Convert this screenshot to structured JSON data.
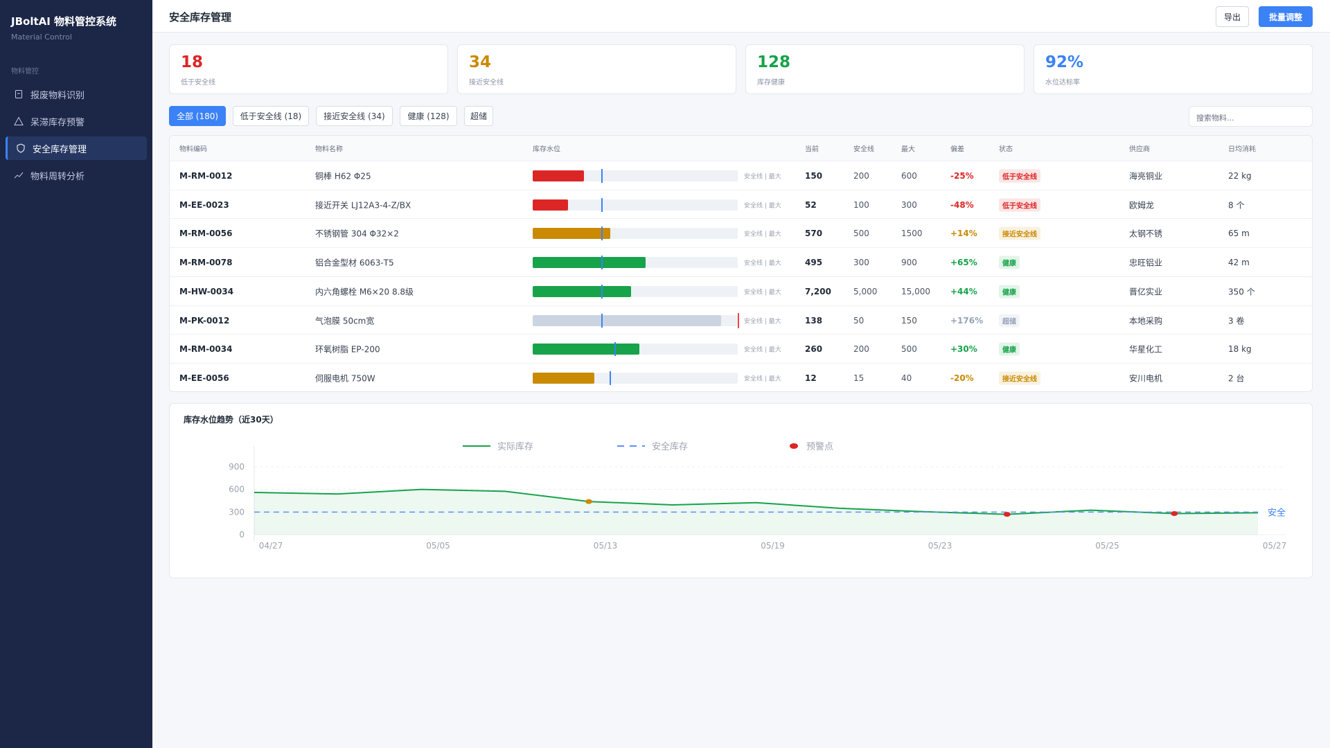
{
  "sidebar": {
    "title": "JBoltAI 物料管控系统",
    "subtitle": "Material Control",
    "section": "物料管控",
    "menu": [
      "报废物料识别",
      "呆滞库存预警",
      "安全库存管理",
      "物料周转分析"
    ]
  },
  "header": {
    "title": "安全库存管理",
    "buttons": [
      "导出",
      "批量调整"
    ]
  },
  "stats": [
    {
      "value": 18,
      "label": "低于安全线",
      "color": "#dc2626"
    },
    {
      "value": 34,
      "label": "接近安全线",
      "color": "#ca8a04"
    },
    {
      "value": 128,
      "label": "库存健康",
      "color": "#16a34a"
    },
    {
      "value": "92%",
      "label": "水位达标率",
      "color": "#3b82f6"
    }
  ],
  "filters": [
    "全部 (180)",
    "低于安全线 (18)",
    "接近安全线 (34)",
    "健康 (128)",
    "超储"
  ],
  "search_placeholder": "搜索物料...",
  "table": {
    "columns": [
      "物料编码",
      "物料名称",
      "库存水位",
      "当前",
      "安全线",
      "最大",
      "偏差",
      "状态",
      "供应商",
      "日均消耗"
    ],
    "level_legend": "安全线 | 最大",
    "rows": [
      {
        "code": "M-RM-0012",
        "name": "铜棒 H62 Φ25",
        "current": 150,
        "safety": 200,
        "max": 600,
        "deviation": "-25%",
        "status": "低于安全线",
        "color": "#dc2626",
        "supplier": "海亮铜业",
        "daily": "22 kg"
      },
      {
        "code": "M-EE-0023",
        "name": "接近开关 LJ12A3-4-Z/BX",
        "current": 52,
        "safety": 100,
        "max": 300,
        "deviation": "-48%",
        "status": "低于安全线",
        "color": "#dc2626",
        "supplier": "欧姆龙",
        "daily": "8 个"
      },
      {
        "code": "M-RM-0056",
        "name": "不锈钢管 304 Φ32×2",
        "current": 570,
        "safety": 500,
        "max": 1500,
        "deviation": "+14%",
        "status": "接近安全线",
        "color": "#ca8a04",
        "supplier": "太钢不锈",
        "daily": "65 m"
      },
      {
        "code": "M-RM-0078",
        "name": "铝合金型材 6063-T5",
        "current": 495,
        "safety": 300,
        "max": 900,
        "deviation": "+65%",
        "status": "健康",
        "color": "#16a34a",
        "supplier": "忠旺铝业",
        "daily": "42 m"
      },
      {
        "code": "M-HW-0034",
        "name": "内六角螺栓 M6×20 8.8级",
        "current": {
          "value": 7200,
          "label": "7,200"
        },
        "safety": {
          "value": 5000,
          "label": "5,000"
        },
        "max": {
          "value": 15000,
          "label": "15,000"
        },
        "deviation": "+44%",
        "status": "健康",
        "color": "#16a34a",
        "supplier": "晋亿实业",
        "daily": "350 个"
      },
      {
        "code": "M-PK-0012",
        "name": "气泡膜 50cm宽",
        "current": 138,
        "safety": 50,
        "max": 150,
        "deviation": "+176%",
        "status": "超储",
        "color": "#94a3b8",
        "supplier": "本地采购",
        "daily": "3 卷"
      },
      {
        "code": "M-RM-0034",
        "name": "环氧树脂 EP-200",
        "current": 260,
        "safety": 200,
        "max": 500,
        "deviation": "+30%",
        "status": "健康",
        "color": "#16a34a",
        "supplier": "华星化工",
        "daily": "18 kg"
      },
      {
        "code": "M-EE-0056",
        "name": "伺服电机 750W",
        "current": 12,
        "safety": 15,
        "max": 40,
        "deviation": "-20%",
        "status": "接近安全线",
        "color": "#ca8a04",
        "supplier": "安川电机",
        "daily": "2 台"
      }
    ]
  },
  "chart_data": {
    "type": "line",
    "title": "库存水位趋势（近30天）",
    "categories": [
      "04/27",
      null,
      "05/05",
      null,
      "05/13",
      null,
      "05/19",
      null,
      "05/23",
      null,
      "05/25",
      null,
      "05/27"
    ],
    "ylim": [
      0,
      900
    ],
    "yticks": [
      0,
      300,
      600,
      900
    ],
    "grid": true,
    "series": [
      {
        "name": "实际库存",
        "color": "#16a34a",
        "area": true,
        "values": [
          560,
          540,
          600,
          575,
          440,
          395,
          425,
          350,
          305,
          270,
          325,
          280,
          290
        ]
      },
      {
        "name": "安全库存",
        "color": "#5b8ff9",
        "dashed": true,
        "values": [
          300,
          300,
          300,
          300,
          300,
          300,
          300,
          300,
          300,
          300,
          300,
          300,
          300
        ]
      },
      {
        "name": "预警点",
        "color": "#dc2626",
        "points": true,
        "values": [
          null,
          null,
          null,
          null,
          440,
          null,
          null,
          null,
          null,
          270,
          null,
          280,
          null
        ],
        "point_colors": [
          null,
          null,
          null,
          null,
          "#ca8a04",
          null,
          null,
          null,
          null,
          "#dc2626",
          null,
          "#dc2626",
          null
        ]
      }
    ],
    "safety_label": "安全"
  }
}
